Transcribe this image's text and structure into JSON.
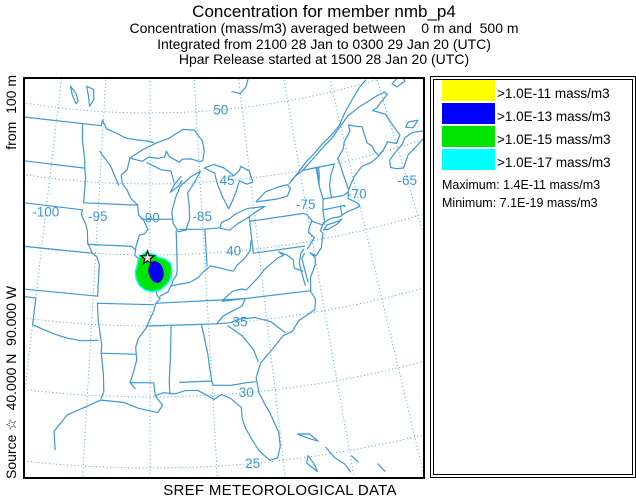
{
  "header": {
    "title": "Concentration for member nmb_p4",
    "line2": "Concentration (mass/m3) averaged between    0 m and  500 m",
    "line3": "Integrated from 2100 28 Jan to 0300 29 Jan 20 (UTC)",
    "line4": "Hpar Release started at 1500 28 Jan 20 (UTC)"
  },
  "left_axis": {
    "source_label": "Source ☆  40.000 N  90.000 W",
    "height_label": "from  100 m"
  },
  "footer": {
    "label": "SREF METEOROLOGICAL DATA"
  },
  "legend": {
    "entries": [
      {
        "color": "#ffff00",
        "label": ">1.0E-11 mass/m3"
      },
      {
        "color": "#0000ff",
        "label": ">1.0E-13 mass/m3"
      },
      {
        "color": "#00e400",
        "label": ">1.0E-15 mass/m3"
      },
      {
        "color": "#00ffff",
        "label": ">1.0E-17 mass/m3"
      }
    ],
    "maximum": "Maximum: 1.4E-11 mass/m3",
    "minimum": "Minimum: 7.1E-19 mass/m3"
  },
  "map": {
    "lon_labels": [
      -100,
      -95,
      -90,
      -85,
      -75,
      -70,
      -65
    ],
    "lat_labels": [
      50,
      45,
      40,
      35,
      30,
      25
    ],
    "line_color": "#3d98d3",
    "grid_color": "#55a6d9",
    "label_color": "#3d98d3",
    "plume": {
      "outer_color": "#00ffff",
      "mid_color": "#00e400",
      "core_color": "#0000ee"
    },
    "source": {
      "lat": 40.0,
      "lon": -90.0
    }
  }
}
